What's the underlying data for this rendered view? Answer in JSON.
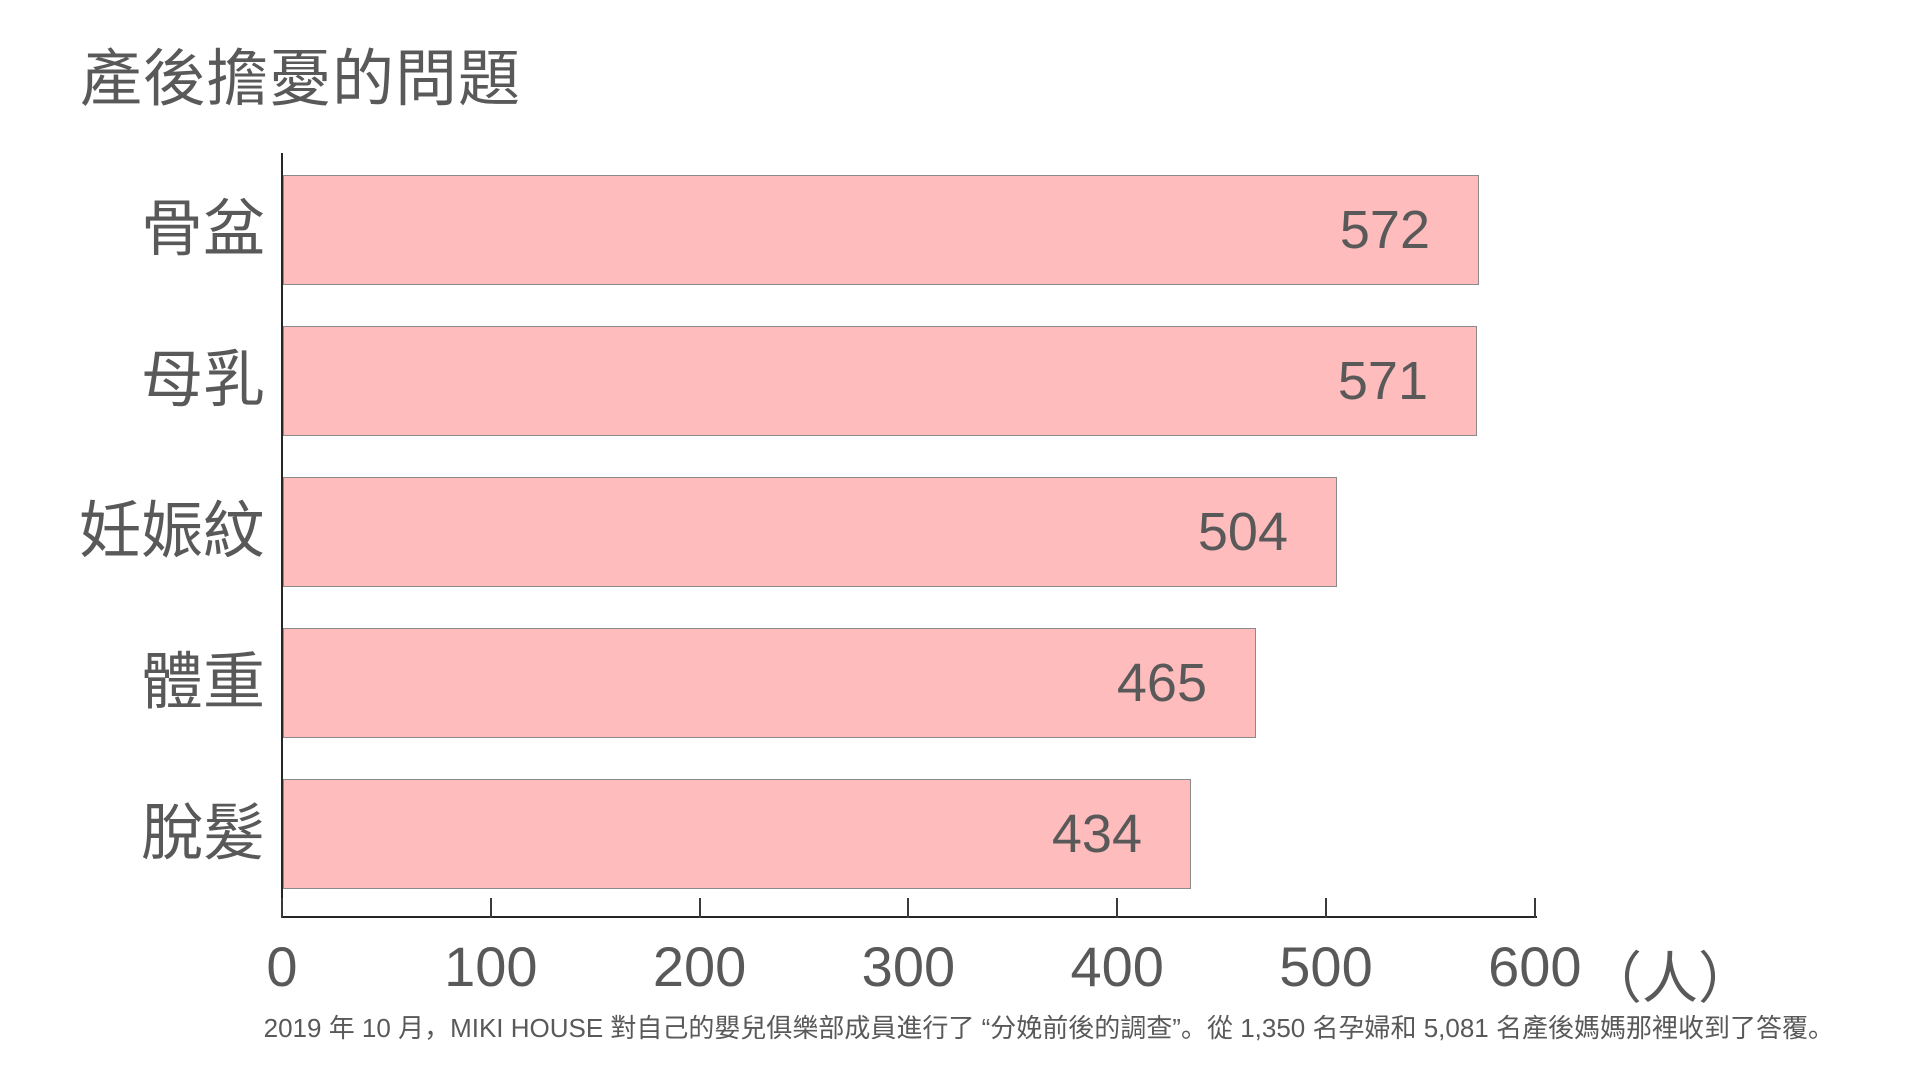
{
  "page": {
    "background_color": "#ffffff",
    "text_color": "#595959",
    "axis_color": "#262626"
  },
  "chart_data": {
    "type": "bar",
    "orientation": "horizontal",
    "title": "產後擔憂的問題",
    "categories": [
      "骨盆",
      "母乳",
      "妊娠紋",
      "體重",
      "脫髮"
    ],
    "values": [
      572,
      571,
      504,
      465,
      434
    ],
    "xlabel": "（人）",
    "xlim": [
      0,
      600
    ],
    "xticks": [
      0,
      100,
      200,
      300,
      400,
      500,
      600
    ],
    "bar_color": "#FFBCBD",
    "bar_border_color": "#8a8a8a",
    "value_labels_inside_bar": true,
    "grid": false,
    "legend": false
  },
  "footnote": "2019 年 10 月，MIKI HOUSE 對自己的嬰兒俱樂部成員進行了 “分娩前後的調查”。從 1,350 名孕婦和 5,081 名產後媽媽那裡收到了答覆。"
}
